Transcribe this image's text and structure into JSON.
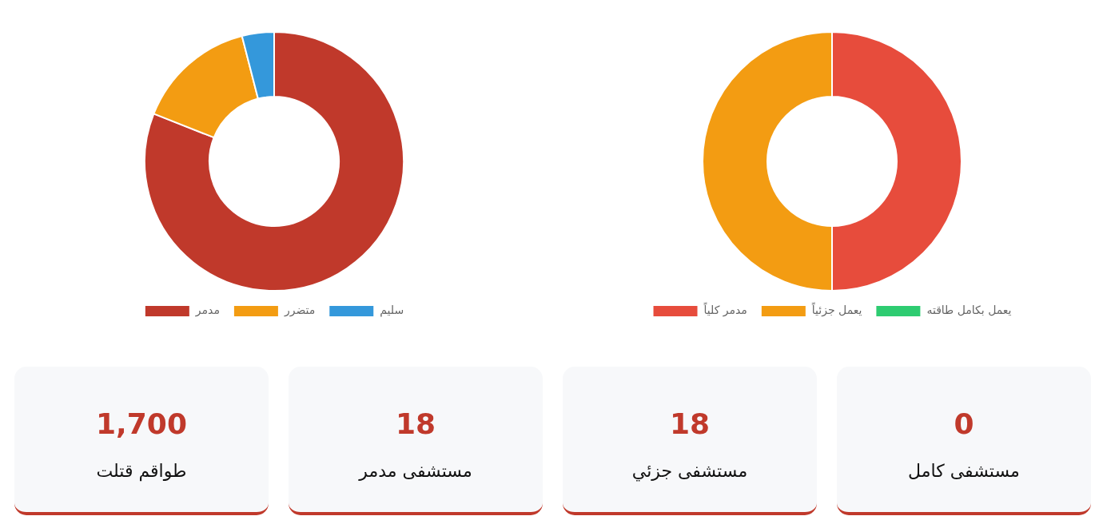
{
  "chart_data": [
    {
      "type": "donut",
      "categories": [
        "مدمر",
        "متضرر",
        "سليم"
      ],
      "values": [
        81,
        15,
        4
      ],
      "colors": [
        "#c0392b",
        "#f39c12",
        "#3498db"
      ],
      "legend": "bottom"
    },
    {
      "type": "donut",
      "categories": [
        "مدمر كلياً",
        "يعمل جزئياً",
        "يعمل بكامل طاقته"
      ],
      "values": [
        50,
        50,
        0
      ],
      "colors": [
        "#e74c3c",
        "#f39c12",
        "#2ecc71"
      ],
      "legend": "bottom"
    },
    {
      "type": "other",
      "categories": [
        "طواقم قتلت",
        "مستشفى مدمر",
        "مستشفى جزئي",
        "مستشفى كامل"
      ],
      "value_labels": [
        "1,700",
        "18",
        "18",
        "0"
      ]
    }
  ]
}
